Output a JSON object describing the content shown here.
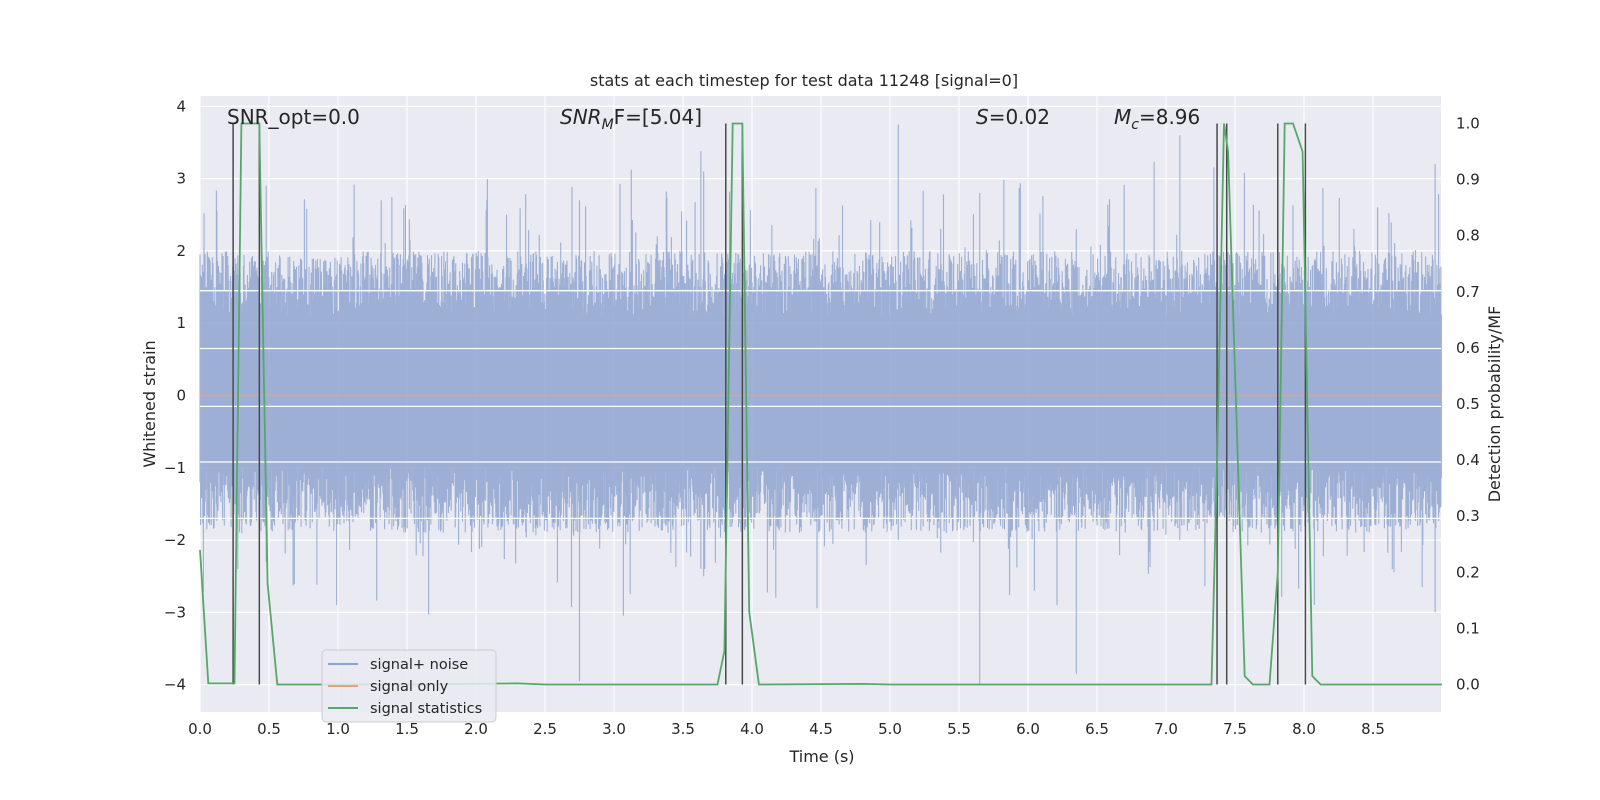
{
  "chart_data": {
    "type": "line",
    "title": "stats at each timestep for test data 11248 [signal=0]",
    "xlabel": "Time (s)",
    "ylabel": "Whitened strain",
    "ylabel_right": "Detection probability/MF",
    "xlim": [
      0.0,
      9.0
    ],
    "ylim": [
      -4.4,
      4.1
    ],
    "ylim_right": [
      -0.048,
      1.035
    ],
    "xticks": [
      "0.0",
      "0.5",
      "1.0",
      "1.5",
      "2.0",
      "2.5",
      "3.0",
      "3.5",
      "4.0",
      "4.5",
      "5.0",
      "5.5",
      "6.0",
      "6.5",
      "7.0",
      "7.5",
      "8.0",
      "8.5"
    ],
    "yticks": [
      "4",
      "3",
      "2",
      "1",
      "0",
      "−1",
      "−2",
      "−3",
      "−4"
    ],
    "yticks_right": [
      "1.0",
      "0.9",
      "0.8",
      "0.7",
      "0.6",
      "0.5",
      "0.4",
      "0.3",
      "0.2",
      "0.1",
      "0.0"
    ],
    "grid": true,
    "legend_position": "lower-left",
    "annotations": {
      "snr_opt": "SNR_opt=0.0",
      "snr_mf_sym": "SNR",
      "snr_mf_sub": "M",
      "snr_mf_rest": "F=[5.04]",
      "s_sym": "S",
      "s_rest": "=0.02",
      "mc_sym": "M",
      "mc_sub": "c",
      "mc_rest": "=8.96"
    },
    "series": [
      {
        "name": "signal+ noise",
        "color": "#8fa5cf",
        "description_values": "whitened strain noise, roughly uniform band between about -1.5 and 1.8 with spikes to about +3.8 and -4.0"
      },
      {
        "name": "signal only",
        "color": "#e2a37f",
        "y_constant": 0.0
      },
      {
        "name": "signal statistics",
        "color": "#55a868",
        "points": [
          [
            0.0,
            0.24
          ],
          [
            0.06,
            0.002
          ],
          [
            0.25,
            0.002
          ],
          [
            0.3,
            1.0
          ],
          [
            0.43,
            1.0
          ],
          [
            0.49,
            0.18
          ],
          [
            0.56,
            0.0
          ],
          [
            1.5,
            0.0
          ],
          [
            2.3,
            0.002
          ],
          [
            2.5,
            0.0
          ],
          [
            3.75,
            0.0
          ],
          [
            3.8,
            0.06
          ],
          [
            3.86,
            1.0
          ],
          [
            3.93,
            1.0
          ],
          [
            3.98,
            0.13
          ],
          [
            4.05,
            0.0
          ],
          [
            4.8,
            0.001
          ],
          [
            5.0,
            0.0
          ],
          [
            7.33,
            0.0
          ],
          [
            7.37,
            0.4
          ],
          [
            7.42,
            1.0
          ],
          [
            7.45,
            0.95
          ],
          [
            7.52,
            0.4
          ],
          [
            7.57,
            0.015
          ],
          [
            7.63,
            0.0
          ],
          [
            7.75,
            0.0
          ],
          [
            7.81,
            0.2
          ],
          [
            7.86,
            1.0
          ],
          [
            7.92,
            1.0
          ],
          [
            7.99,
            0.95
          ],
          [
            8.06,
            0.015
          ],
          [
            8.12,
            0.0
          ],
          [
            9.0,
            0.0
          ]
        ]
      }
    ],
    "vertical_markers_x": [
      0.24,
      0.43,
      3.81,
      3.93,
      7.37,
      7.44,
      7.81,
      8.01
    ],
    "white_reference_lines_y": [
      1.45,
      0.65,
      -0.15,
      -0.92,
      -1.7
    ]
  },
  "legend": {
    "items": [
      {
        "label": "signal+ noise",
        "color": "#8fa5cf"
      },
      {
        "label": "signal only",
        "color": "#e2a37f"
      },
      {
        "label": "signal statistics",
        "color": "#55a868"
      }
    ]
  }
}
